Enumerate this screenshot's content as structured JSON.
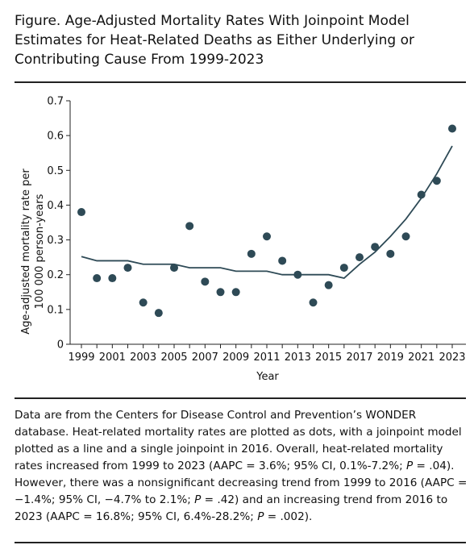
{
  "figure": {
    "title": "Figure. Age-Adjusted Mortality Rates With Joinpoint Model Estimates for Heat-Related Deaths as Either Underlying or Contributing Cause From 1999-2023"
  },
  "chart_data": {
    "type": "scatter",
    "title": "",
    "xlabel": "Year",
    "ylabel_line1": "Age-adjusted mortality rate per",
    "ylabel_line2": "100 000 person-years",
    "xlim": [
      1999,
      2023
    ],
    "ylim": [
      0,
      0.7
    ],
    "yticks": [
      0,
      0.1,
      0.2,
      0.3,
      0.4,
      0.5,
      0.6,
      0.7
    ],
    "ytick_labels": [
      "0",
      "0.1",
      "0.2",
      "0.3",
      "0.4",
      "0.5",
      "0.6",
      "0.7"
    ],
    "xticks": [
      1999,
      2001,
      2003,
      2005,
      2007,
      2009,
      2011,
      2013,
      2015,
      2017,
      2019,
      2021,
      2023
    ],
    "grid": false,
    "series": [
      {
        "kind": "points",
        "color": "#2e4a56",
        "x": [
          1999,
          2000,
          2001,
          2002,
          2003,
          2004,
          2005,
          2006,
          2007,
          2008,
          2009,
          2010,
          2011,
          2012,
          2013,
          2014,
          2015,
          2016,
          2017,
          2018,
          2019,
          2020,
          2021,
          2022,
          2023
        ],
        "y": [
          0.38,
          0.19,
          0.19,
          0.22,
          0.12,
          0.09,
          0.22,
          0.34,
          0.18,
          0.15,
          0.15,
          0.26,
          0.31,
          0.24,
          0.2,
          0.12,
          0.17,
          0.22,
          0.25,
          0.28,
          0.26,
          0.31,
          0.43,
          0.47,
          0.62
        ]
      },
      {
        "kind": "line",
        "color": "#2e4a56",
        "x": [
          1999,
          2000,
          2001,
          2002,
          2003,
          2004,
          2005,
          2006,
          2007,
          2008,
          2009,
          2010,
          2011,
          2012,
          2013,
          2014,
          2015,
          2016,
          2017,
          2018,
          2019,
          2020,
          2021,
          2022,
          2023
        ],
        "y": [
          0.252,
          0.24,
          0.24,
          0.24,
          0.23,
          0.23,
          0.23,
          0.22,
          0.22,
          0.22,
          0.21,
          0.21,
          0.21,
          0.2,
          0.2,
          0.2,
          0.2,
          0.19,
          0.23,
          0.265,
          0.31,
          0.36,
          0.42,
          0.49,
          0.57
        ]
      }
    ]
  },
  "caption": {
    "part1": "Data are from the Centers for Disease Control and Prevention’s WONDER database. Heat-related mortality rates are plotted as dots, with a joinpoint model plotted as a line and a single joinpoint in 2016. Overall, heat-related mortality rates increased from 1999 to 2023 (AAPC = 3.6%; 95% CI, 0.1%-7.2%; ",
    "p_label": "P",
    "part2": " = .04). However, there was a nonsignificant decreasing trend from 1999 to 2016 (AAPC = −1.4%; 95% CI, −4.7% to 2.1%; ",
    "part3": " = .42) and an increasing trend from 2016 to 2023 (AAPC = 16.8%; 95% CI, 6.4%-28.2%; ",
    "part4": " = .002)."
  }
}
